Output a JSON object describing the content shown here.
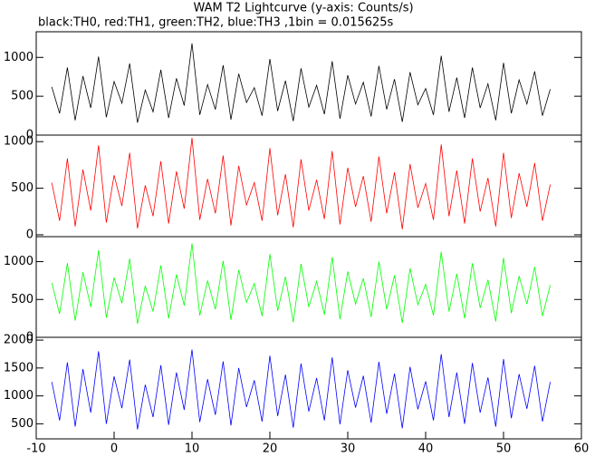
{
  "chart_data": [
    {
      "type": "line",
      "title": "WAM T2 Lightcurve (y-axis: Counts/s)",
      "subtitle": "black:TH0, red:TH1, green:TH2, blue:TH3 ,1bin = 0.015625s",
      "color": "#000000",
      "xlim": [
        -10,
        60
      ],
      "ylim": [
        0,
        1330
      ],
      "yticks": [
        0,
        500,
        1000
      ],
      "x": [
        -8,
        -7,
        -6,
        -5,
        -4,
        -3,
        -2,
        -1,
        0,
        1,
        2,
        3,
        4,
        5,
        6,
        7,
        8,
        9,
        10,
        11,
        12,
        13,
        14,
        15,
        16,
        17,
        18,
        19,
        20,
        21,
        22,
        23,
        24,
        25,
        26,
        27,
        28,
        29,
        30,
        31,
        32,
        33,
        34,
        35,
        36,
        37,
        38,
        39,
        40,
        41,
        42,
        43,
        44,
        45,
        46,
        47,
        48,
        49,
        50,
        51,
        52,
        53,
        54,
        55,
        56
      ],
      "values": [
        620,
        280,
        870,
        190,
        760,
        350,
        1010,
        230,
        690,
        410,
        920,
        160,
        580,
        300,
        840,
        220,
        730,
        380,
        1180,
        260,
        650,
        330,
        900,
        200,
        790,
        420,
        610,
        250,
        980,
        310,
        700,
        180,
        860,
        360,
        640,
        270,
        950,
        210,
        770,
        400,
        680,
        240,
        890,
        330,
        720,
        170,
        810,
        390,
        600,
        260,
        1020,
        300,
        740,
        220,
        870,
        350,
        660,
        190,
        930,
        280,
        710,
        400,
        820,
        250,
        590
      ]
    },
    {
      "type": "line",
      "color": "#ff0000",
      "xlim": [
        -10,
        60
      ],
      "ylim": [
        -20,
        1070
      ],
      "yticks": [
        0,
        500,
        1000
      ],
      "x": [
        -8,
        -7,
        -6,
        -5,
        -4,
        -3,
        -2,
        -1,
        0,
        1,
        2,
        3,
        4,
        5,
        6,
        7,
        8,
        9,
        10,
        11,
        12,
        13,
        14,
        15,
        16,
        17,
        18,
        19,
        20,
        21,
        22,
        23,
        24,
        25,
        26,
        27,
        28,
        29,
        30,
        31,
        32,
        33,
        34,
        35,
        36,
        37,
        38,
        39,
        40,
        41,
        42,
        43,
        44,
        45,
        46,
        47,
        48,
        49,
        50,
        51,
        52,
        53,
        54,
        55,
        56
      ],
      "values": [
        560,
        150,
        820,
        90,
        700,
        260,
        960,
        130,
        640,
        310,
        880,
        70,
        530,
        200,
        790,
        120,
        680,
        280,
        1040,
        160,
        600,
        230,
        850,
        100,
        740,
        320,
        560,
        150,
        930,
        210,
        650,
        80,
        810,
        260,
        590,
        170,
        900,
        110,
        720,
        300,
        630,
        140,
        840,
        230,
        670,
        60,
        760,
        290,
        550,
        160,
        970,
        200,
        690,
        120,
        820,
        250,
        610,
        90,
        880,
        180,
        660,
        300,
        770,
        150,
        540
      ]
    },
    {
      "type": "line",
      "color": "#00ff00",
      "xlim": [
        -10,
        60
      ],
      "ylim": [
        0,
        1330
      ],
      "yticks": [
        0,
        500,
        1000
      ],
      "x": [
        -8,
        -7,
        -6,
        -5,
        -4,
        -3,
        -2,
        -1,
        0,
        1,
        2,
        3,
        4,
        5,
        6,
        7,
        8,
        9,
        10,
        11,
        12,
        13,
        14,
        15,
        16,
        17,
        18,
        19,
        20,
        21,
        22,
        23,
        24,
        25,
        26,
        27,
        28,
        29,
        30,
        31,
        32,
        33,
        34,
        35,
        36,
        37,
        38,
        39,
        40,
        41,
        42,
        43,
        44,
        45,
        46,
        47,
        48,
        49,
        50,
        51,
        52,
        53,
        54,
        55,
        56
      ],
      "values": [
        720,
        310,
        980,
        220,
        860,
        400,
        1150,
        260,
        790,
        450,
        1040,
        180,
        680,
        340,
        950,
        250,
        830,
        420,
        1240,
        290,
        750,
        370,
        1010,
        230,
        890,
        460,
        710,
        280,
        1100,
        350,
        800,
        200,
        970,
        400,
        740,
        300,
        1060,
        240,
        870,
        440,
        780,
        270,
        1000,
        370,
        820,
        190,
        910,
        430,
        700,
        290,
        1130,
        340,
        840,
        250,
        980,
        390,
        760,
        210,
        1050,
        320,
        810,
        440,
        930,
        280,
        690
      ]
    },
    {
      "type": "line",
      "color": "#0000ff",
      "xlim": [
        -10,
        60
      ],
      "ylim": [
        230,
        2050
      ],
      "yticks": [
        500,
        1000,
        1500,
        2000
      ],
      "xticks": [
        -10,
        0,
        10,
        20,
        30,
        40,
        50,
        60
      ],
      "x": [
        -8,
        -7,
        -6,
        -5,
        -4,
        -3,
        -2,
        -1,
        0,
        1,
        2,
        3,
        4,
        5,
        6,
        7,
        8,
        9,
        10,
        11,
        12,
        13,
        14,
        15,
        16,
        17,
        18,
        19,
        20,
        21,
        22,
        23,
        24,
        25,
        26,
        27,
        28,
        29,
        30,
        31,
        32,
        33,
        34,
        35,
        36,
        37,
        38,
        39,
        40,
        41,
        42,
        43,
        44,
        45,
        46,
        47,
        48,
        49,
        50,
        51,
        52,
        53,
        54,
        55,
        56
      ],
      "values": [
        1250,
        560,
        1600,
        450,
        1480,
        700,
        1800,
        500,
        1350,
        780,
        1650,
        400,
        1200,
        620,
        1550,
        480,
        1420,
        750,
        1830,
        530,
        1300,
        660,
        1620,
        470,
        1500,
        800,
        1280,
        540,
        1720,
        640,
        1380,
        430,
        1580,
        720,
        1320,
        560,
        1690,
        490,
        1460,
        790,
        1360,
        520,
        1610,
        680,
        1400,
        420,
        1520,
        760,
        1260,
        560,
        1750,
        620,
        1420,
        500,
        1590,
        700,
        1330,
        450,
        1660,
        600,
        1390,
        770,
        1540,
        540,
        1250
      ]
    }
  ]
}
